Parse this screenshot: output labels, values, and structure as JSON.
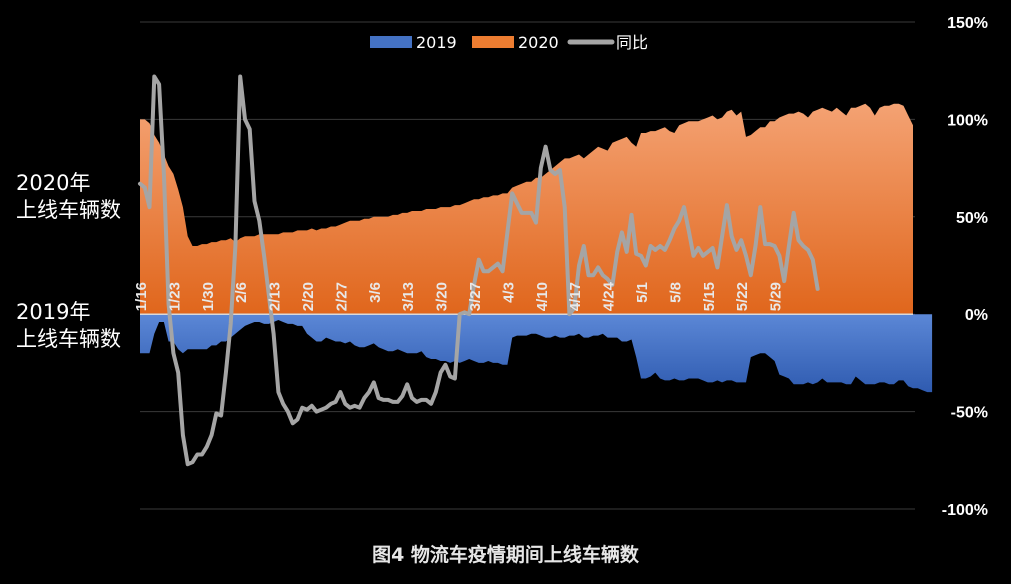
{
  "chart_data": {
    "type": "area",
    "caption": "图4  物流车疫情期间上线车辆数",
    "left_labels": {
      "top": [
        "2020年",
        "上线车辆数"
      ],
      "bottom": [
        "2019年",
        "上线车辆数"
      ]
    },
    "legend": [
      {
        "name": "2019",
        "color": "#4472c4"
      },
      {
        "name": "2020",
        "color": "#ed7d31"
      },
      {
        "name": "同比",
        "color": "#a5a5a5"
      }
    ],
    "legend_position": "top-center",
    "y_axis_right": {
      "ticks": [
        "150%",
        "100%",
        "50%",
        "0%",
        "-50%",
        "-100%"
      ],
      "range": [
        -100,
        150
      ],
      "gridlines": true
    },
    "x_tick_labels": [
      "1/16",
      "1/23",
      "1/30",
      "2/6",
      "2/13",
      "2/20",
      "2/27",
      "3/6",
      "3/13",
      "3/20",
      "3/27",
      "4/3",
      "4/10",
      "4/17",
      "4/24",
      "5/1",
      "5/8",
      "5/15",
      "5/22",
      "5/29"
    ],
    "x_start": "1/16",
    "series": [
      {
        "name": "2020",
        "kind": "area-above-axis",
        "values": [
          100,
          100,
          98,
          92,
          88,
          82,
          76,
          72,
          64,
          55,
          40,
          35,
          35,
          36,
          36,
          37,
          37,
          38,
          38,
          39,
          37,
          39,
          40,
          40,
          40,
          41,
          41,
          41,
          41,
          41,
          42,
          42,
          42,
          43,
          43,
          43,
          44,
          43,
          44,
          44,
          45,
          45,
          46,
          47,
          48,
          48,
          48,
          49,
          49,
          50,
          50,
          50,
          50,
          51,
          51,
          52,
          52,
          53,
          53,
          53,
          54,
          54,
          54,
          55,
          55,
          55,
          56,
          56,
          57,
          58,
          59,
          59,
          60,
          60,
          61,
          61,
          62,
          62,
          65,
          66,
          67,
          68,
          68,
          70,
          70,
          72,
          74,
          76,
          78,
          80,
          80,
          81,
          82,
          80,
          82,
          84,
          86,
          85,
          84,
          88,
          89,
          90,
          91,
          88,
          86,
          93,
          93,
          94,
          94,
          95,
          96,
          94,
          93,
          97,
          98,
          99,
          99,
          99,
          100,
          101,
          102,
          100,
          101,
          104,
          105,
          102,
          104,
          91,
          92,
          94,
          96,
          96,
          99,
          99,
          101,
          102,
          103,
          103,
          104,
          103,
          101,
          104,
          105,
          106,
          105,
          104,
          106,
          104,
          102,
          106,
          106,
          107,
          108,
          106,
          102,
          106,
          107,
          107,
          108,
          108,
          107,
          102,
          97
        ]
      },
      {
        "name": "2019",
        "kind": "area-below-axis",
        "values": [
          -20,
          -20,
          -20,
          -10,
          -4,
          -4,
          -14,
          -14,
          -18,
          -20,
          -18,
          -18,
          -18,
          -18,
          -18,
          -16,
          -16,
          -14,
          -14,
          -12,
          -10,
          -8,
          -6,
          -5,
          -4,
          -4,
          -5,
          -5,
          -4,
          -3,
          -4,
          -5,
          -5,
          -6,
          -6,
          -10,
          -12,
          -14,
          -14,
          -12,
          -13,
          -14,
          -14,
          -15,
          -14,
          -16,
          -17,
          -17,
          -16,
          -15,
          -17,
          -18,
          -19,
          -19,
          -18,
          -19,
          -20,
          -20,
          -20,
          -19,
          -22,
          -23,
          -23,
          -24,
          -24,
          -25,
          -24,
          -25,
          -24,
          -23,
          -24,
          -25,
          -25,
          -24,
          -25,
          -25,
          -26,
          -26,
          -12,
          -11,
          -11,
          -11,
          -10,
          -10,
          -11,
          -12,
          -12,
          -11,
          -12,
          -12,
          -11,
          -11,
          -10,
          -12,
          -12,
          -11,
          -11,
          -10,
          -12,
          -12,
          -12,
          -14,
          -14,
          -13,
          -22,
          -33,
          -33,
          -32,
          -30,
          -33,
          -34,
          -34,
          -33,
          -34,
          -34,
          -33,
          -33,
          -33,
          -34,
          -35,
          -35,
          -34,
          -35,
          -34,
          -34,
          -35,
          -35,
          -35,
          -22,
          -21,
          -20,
          -20,
          -22,
          -24,
          -31,
          -32,
          -33,
          -36,
          -36,
          -36,
          -35,
          -36,
          -35,
          -33,
          -35,
          -35,
          -35,
          -35,
          -36,
          -36,
          -32,
          -34,
          -36,
          -36,
          -36,
          -35,
          -35,
          -36,
          -36,
          -34,
          -34,
          -37,
          -38,
          -38,
          -39,
          -40,
          -40
        ]
      },
      {
        "name": "同比",
        "kind": "line",
        "values": [
          67,
          65,
          55,
          122,
          118,
          72,
          5,
          -20,
          -30,
          -62,
          -77,
          -76,
          -72,
          -72,
          -68,
          -62,
          -51,
          -52,
          -30,
          -5,
          35,
          122,
          100,
          95,
          58,
          48,
          30,
          10,
          -10,
          -40,
          -46,
          -50,
          -56,
          -54,
          -48,
          -49,
          -47,
          -50,
          -49,
          -48,
          -46,
          -45,
          -40,
          -46,
          -48,
          -47,
          -48,
          -43,
          -40,
          -35,
          -43,
          -44,
          -44,
          -45,
          -45,
          -42,
          -36,
          -43,
          -45,
          -44,
          -44,
          -46,
          -40,
          -30,
          -26,
          -32,
          -33,
          0,
          1,
          0,
          15,
          28,
          22,
          22,
          24,
          26,
          22,
          42,
          62,
          57,
          52,
          52,
          52,
          47,
          75,
          86,
          74,
          72,
          74,
          55,
          0,
          3,
          25,
          35,
          20,
          20,
          24,
          20,
          18,
          15,
          32,
          42,
          32,
          51,
          31,
          30,
          25,
          35,
          33,
          35,
          33,
          38,
          44,
          48,
          55,
          43,
          30,
          34,
          30,
          32,
          34,
          24,
          40,
          56,
          40,
          33,
          38,
          30,
          20,
          35,
          55,
          36,
          36,
          35,
          30,
          17,
          35,
          52,
          38,
          35,
          33,
          28,
          13
        ]
      }
    ]
  }
}
